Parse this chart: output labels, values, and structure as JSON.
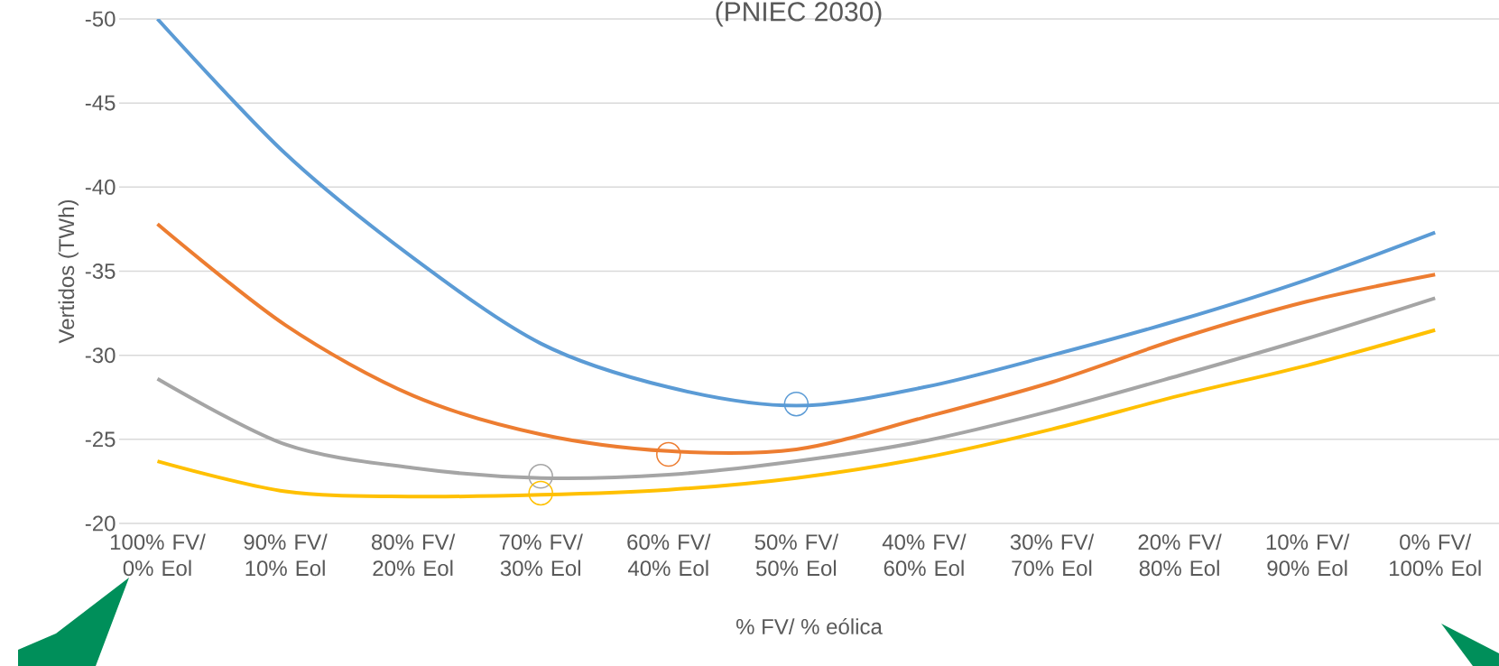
{
  "chart_data": {
    "type": "line",
    "title": "(PNIEC 2030)",
    "xlabel": "% FV/ % eólica",
    "ylabel": "Vertidos (TWh)",
    "categories": [
      "100% FV/ 0% Eol",
      "90% FV/ 10% Eol",
      "80% FV/ 20% Eol",
      "70% FV/ 30% Eol",
      "60% FV/ 40% Eol",
      "50% FV/ 50% Eol",
      "40% FV/ 60% Eol",
      "30% FV/ 70% Eol",
      "20% FV/ 80% Eol",
      "10% FV/ 90% Eol",
      "0% FV/ 100% Eol"
    ],
    "ylim": [
      -20,
      -50
    ],
    "yticks": [
      -50,
      -45,
      -40,
      -35,
      -30,
      -25,
      -20
    ],
    "grid": "y",
    "marker": "none",
    "line_style": "solid",
    "series": [
      {
        "color": "#5b9bd5",
        "values": [
          -50.0,
          -42.0,
          -35.8,
          -30.7,
          -28.1,
          -27.0,
          -28.1,
          -30.0,
          -32.1,
          -34.5,
          -37.3
        ]
      },
      {
        "color": "#ed7d31",
        "values": [
          -37.8,
          -31.8,
          -27.6,
          -25.3,
          -24.3,
          -24.4,
          -26.3,
          -28.4,
          -31.0,
          -33.2,
          -34.8
        ]
      },
      {
        "color": "#a5a5a5",
        "values": [
          -28.6,
          -24.7,
          -23.3,
          -22.7,
          -22.9,
          -23.7,
          -24.9,
          -26.7,
          -28.8,
          -31.0,
          -33.4
        ]
      },
      {
        "color": "#ffc000",
        "values": [
          -23.7,
          -21.9,
          -21.6,
          -21.7,
          -22.0,
          -22.7,
          -23.9,
          -25.6,
          -27.6,
          -29.4,
          -31.5
        ]
      },
      {
        "type": "scatter",
        "marker": "circle",
        "color": "#5b9bd5",
        "values": [
          null,
          null,
          null,
          null,
          null,
          -27.1,
          null,
          null,
          null,
          null,
          null
        ]
      },
      {
        "type": "scatter",
        "marker": "circle",
        "color": "#ed7d31",
        "values": [
          null,
          null,
          null,
          null,
          -24.1,
          null,
          null,
          null,
          null,
          null,
          null
        ]
      },
      {
        "type": "scatter",
        "marker": "circle",
        "color": "#a5a5a5",
        "values": [
          null,
          null,
          null,
          -22.8,
          null,
          null,
          null,
          null,
          null,
          null,
          null
        ]
      },
      {
        "type": "scatter",
        "marker": "circle",
        "color": "#ffc000",
        "values": [
          null,
          null,
          null,
          -21.8,
          null,
          null,
          null,
          null,
          null,
          null,
          null
        ]
      }
    ]
  }
}
